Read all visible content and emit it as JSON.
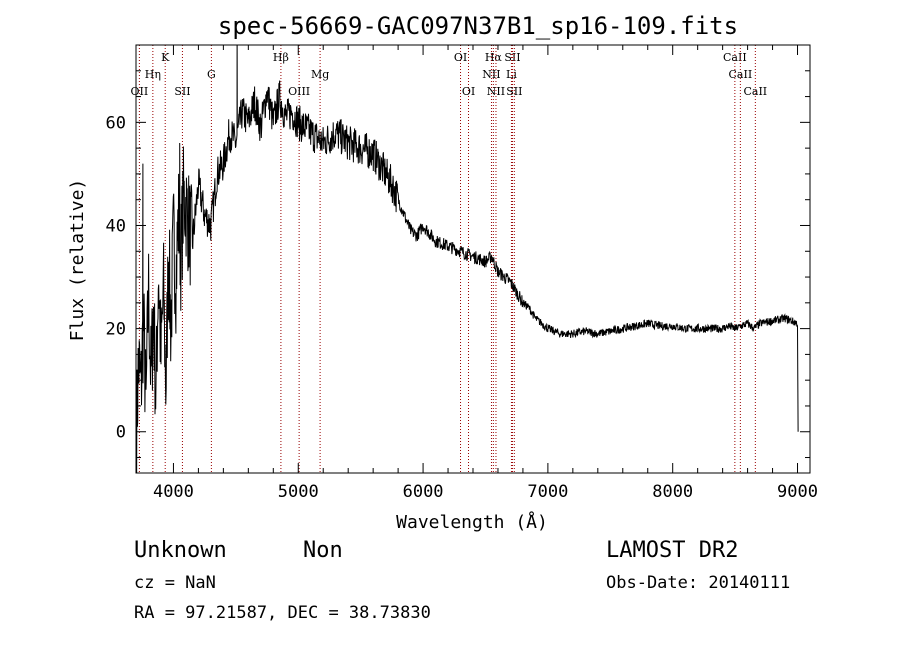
{
  "chart_data": {
    "type": "line",
    "title": "spec-56669-GAC097N37B1_sp16-109.fits",
    "xlabel": "Wavelength (Å)",
    "ylabel": "Flux (relative)",
    "xlim": [
      3700,
      9100
    ],
    "ylim": [
      -8,
      75
    ],
    "xticks": [
      4000,
      5000,
      6000,
      7000,
      8000,
      9000
    ],
    "yticks": [
      0,
      20,
      40,
      60
    ],
    "grid": false,
    "series": [
      {
        "x": [
          3705,
          3720,
          3740,
          3760,
          3780,
          3800,
          3820,
          3840,
          3860,
          3880,
          3900,
          3920,
          3940,
          3960,
          3980,
          4000,
          4020,
          4040,
          4060,
          4080,
          4100,
          4150,
          4200,
          4250,
          4300,
          4350,
          4400,
          4450,
          4500,
          4550,
          4600,
          4650,
          4700,
          4750,
          4800,
          4850,
          4900,
          4950,
          5000,
          5050,
          5100,
          5150,
          5200,
          5300,
          5400,
          5500,
          5600,
          5700,
          5750,
          5800,
          5850,
          5900,
          5950,
          6000,
          6100,
          6200,
          6300,
          6400,
          6500,
          6550,
          6600,
          6650,
          6700,
          6750,
          6800,
          6850,
          6900,
          7000,
          7100,
          7200,
          7300,
          7400,
          7500,
          7600,
          7700,
          7800,
          7900,
          8000,
          8100,
          8200,
          8300,
          8400,
          8450,
          8500,
          8550,
          8600,
          8650,
          8700,
          8800,
          8900,
          8950,
          9000,
          9005
        ],
        "y": [
          0,
          14,
          8,
          22,
          4,
          28,
          10,
          24,
          6,
          32,
          14,
          28,
          8,
          35,
          20,
          38,
          30,
          42,
          34,
          45,
          44,
          36,
          48,
          42,
          40,
          50,
          52,
          58,
          56,
          62,
          60,
          64,
          59,
          66,
          60,
          65,
          61,
          62,
          60,
          59,
          58,
          57,
          56,
          58,
          56,
          55,
          54,
          50,
          48,
          45,
          42,
          39,
          38,
          40,
          37,
          36,
          35,
          34,
          33,
          34,
          31,
          30,
          29,
          27,
          25,
          24,
          22,
          20,
          19,
          19,
          19.5,
          19,
          19.5,
          20,
          20.5,
          21,
          20.5,
          20.5,
          20,
          20,
          20,
          20,
          20.5,
          20,
          20.5,
          21,
          20,
          21,
          21.5,
          22,
          21.5,
          21,
          0
        ],
        "emission_peaks": [
          {
            "x": 4510,
            "y": 80
          },
          {
            "x": 3755,
            "y": 52
          },
          {
            "x": 4050,
            "y": 56
          }
        ]
      }
    ],
    "lines": [
      {
        "label": "OII",
        "x": 3727,
        "tier": 3
      },
      {
        "label": "Hη",
        "x": 3835,
        "tier": 2
      },
      {
        "label": "K",
        "x": 3934,
        "tier": 1
      },
      {
        "label": "SII",
        "x": 4072,
        "tier": 3
      },
      {
        "label": "G",
        "x": 4304,
        "tier": 2
      },
      {
        "label": "Hβ",
        "x": 4861,
        "tier": 1
      },
      {
        "label": "OIII",
        "x": 5007,
        "tier": 3
      },
      {
        "label": "Mg",
        "x": 5175,
        "tier": 2
      },
      {
        "label": "OI",
        "x": 6300,
        "tier": 1
      },
      {
        "label": "OI",
        "x": 6364,
        "tier": 3
      },
      {
        "label": "Hα",
        "x": 6563,
        "tier": 1
      },
      {
        "label": "NII",
        "x": 6548,
        "tier": 2
      },
      {
        "label": "NII",
        "x": 6584,
        "tier": 3
      },
      {
        "label": "SII",
        "x": 6716,
        "tier": 1
      },
      {
        "label": "Li",
        "x": 6708,
        "tier": 2
      },
      {
        "label": "SII",
        "x": 6731,
        "tier": 3
      },
      {
        "label": "CaII",
        "x": 8498,
        "tier": 1
      },
      {
        "label": "CaII",
        "x": 8542,
        "tier": 2
      },
      {
        "label": "CaII",
        "x": 8662,
        "tier": 3
      }
    ],
    "colors": {
      "spectrum": "#000000",
      "lines": "#990000",
      "axes": "#000000"
    }
  },
  "info": {
    "class": "Unknown",
    "subclass": "Non",
    "cz": "cz = NaN",
    "coords": "RA =  97.21587, DEC =  38.73830",
    "survey": "LAMOST DR2",
    "obsdate": "Obs-Date: 20140111"
  }
}
